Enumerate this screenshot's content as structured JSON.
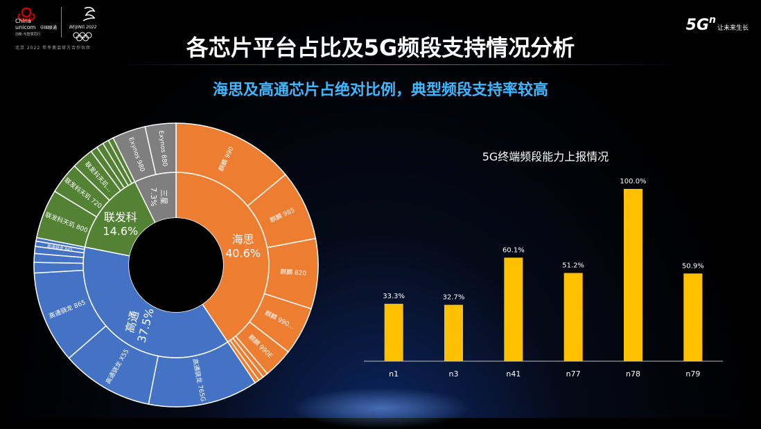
{
  "header": {
    "logo_text_en": "China unicom",
    "logo_text_cn": "中国联通",
    "logo_tagline": "创新·与智慧同行",
    "olympic_text": "BEIJING 2022",
    "logo_footer": "北京 2022 年冬奥会官方合作伙伴",
    "brand_5g": "5G",
    "brand_sup": "n",
    "brand_slogan": "让未来生长"
  },
  "title": "各芯片平台占比及5G频段支持情况分析",
  "subtitle": "海思及高通芯片占绝对比例，典型频段支持率较高",
  "colors": {
    "hisilicon": "#ed7d31",
    "qualcomm": "#4472c4",
    "mediatek": "#548235",
    "samsung": "#7f7f7f",
    "bar": "#ffc000",
    "subtitle": "#3fb8ff"
  },
  "chart_data": [
    {
      "type": "sunburst",
      "inner": [
        {
          "name": "海思",
          "value": 40.6,
          "label": "40.6%",
          "color": "#ed7d31"
        },
        {
          "name": "高通",
          "value": 37.5,
          "label": "37.5%",
          "color": "#4472c4"
        },
        {
          "name": "联发科",
          "value": 14.6,
          "label": "14.6%",
          "color": "#548235"
        },
        {
          "name": "三星",
          "value": 7.3,
          "label": "7.3%",
          "color": "#7f7f7f"
        }
      ],
      "outer": [
        {
          "parent": "海思",
          "name": "麒麟 990",
          "value": 14.0
        },
        {
          "parent": "海思",
          "name": "麒麟 985",
          "value": 8.0
        },
        {
          "parent": "海思",
          "name": "麒麟 820",
          "value": 8.0
        },
        {
          "parent": "海思",
          "name": "麒麟 990…",
          "value": 5.5
        },
        {
          "parent": "海思",
          "name": "麒麟 990E",
          "value": 3.4
        },
        {
          "parent": "海思",
          "name": "",
          "value": 0.6
        },
        {
          "parent": "海思",
          "name": "",
          "value": 0.6
        },
        {
          "parent": "海思",
          "name": "",
          "value": 0.5
        },
        {
          "parent": "高通",
          "name": "高通骁龙 765G",
          "value": 12.5
        },
        {
          "parent": "高通",
          "name": "高通骁龙 X55",
          "value": 10.5
        },
        {
          "parent": "高通",
          "name": "高通骁龙 865",
          "value": 10.5
        },
        {
          "parent": "高通",
          "name": "",
          "value": 1.2
        },
        {
          "parent": "高通",
          "name": "",
          "value": 1.0
        },
        {
          "parent": "高通",
          "name": "",
          "value": 0.8
        },
        {
          "parent": "高通",
          "name": "高通骁龙 845",
          "value": 0.6
        },
        {
          "parent": "高通",
          "name": "",
          "value": 0.4
        },
        {
          "parent": "联发科",
          "name": "联发科天玑 800",
          "value": 5.6
        },
        {
          "parent": "联发科",
          "name": "联发科天玑 720",
          "value": 3.6
        },
        {
          "parent": "联发科",
          "name": "联发科天玑…",
          "value": 2.5
        },
        {
          "parent": "联发科",
          "name": "",
          "value": 0.8
        },
        {
          "parent": "联发科",
          "name": "",
          "value": 0.8
        },
        {
          "parent": "联发科",
          "name": "",
          "value": 0.7
        },
        {
          "parent": "联发科",
          "name": "",
          "value": 0.6
        },
        {
          "parent": "三星",
          "name": "Exynos 980",
          "value": 3.8
        },
        {
          "parent": "三星",
          "name": "Exynos 880",
          "value": 3.5
        }
      ]
    },
    {
      "type": "bar",
      "title": "5G终端频段能力上报情况",
      "categories": [
        "n1",
        "n3",
        "n41",
        "n77",
        "n78",
        "n79"
      ],
      "values": [
        33.3,
        32.7,
        60.1,
        51.2,
        100.0,
        50.9
      ],
      "value_labels": [
        "33.3%",
        "32.7%",
        "60.1%",
        "51.2%",
        "100.0%",
        "50.9%"
      ],
      "ylim": [
        0,
        100
      ],
      "color": "#ffc000"
    }
  ]
}
